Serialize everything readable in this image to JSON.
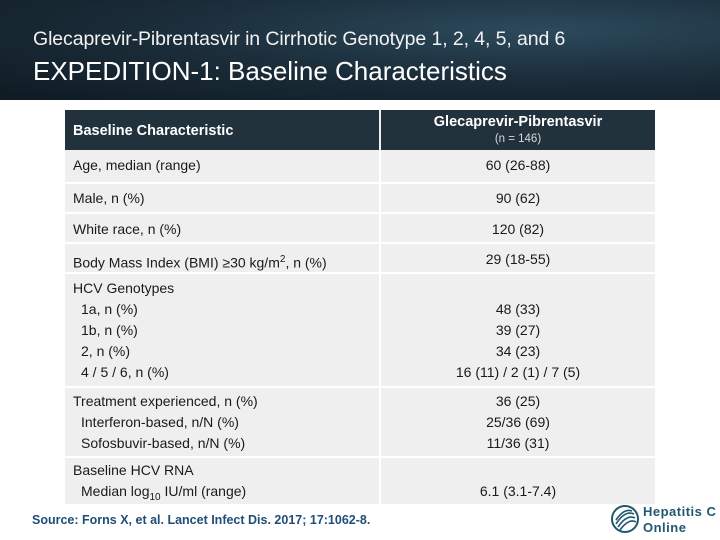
{
  "header": {
    "subtitle": "Glecaprevir-Pibrentasvir in Cirrhotic Genotype 1, 2, 4, 5, and 6",
    "title": "EXPEDITION-1: Baseline Characteristics"
  },
  "table": {
    "col1_header": "Baseline Characteristic",
    "col2_header": "Glecaprevir-Pibrentasvir",
    "col2_subheader": "(n = 146)",
    "rows": [
      {
        "label": "Age, median (range)",
        "value": "60 (26-88)"
      },
      {
        "label": "Male, n (%)",
        "value": "90 (62)"
      },
      {
        "label": "White race, n (%)",
        "value": "120 (82)"
      },
      {
        "label_prefix": "Body Mass Index (BMI) ≥30 kg/m",
        "label_sup": "2",
        "label_suffix": ", n (%)",
        "value": "29 (18-55)"
      },
      {
        "label": "HCV Genotypes",
        "sub_labels": [
          "1a, n (%)",
          "1b, n (%)",
          "2, n (%)",
          "4 / 5 / 6, n (%)"
        ],
        "sub_values": [
          "48 (33)",
          "39 (27)",
          "34 (23)",
          "16 (11) / 2 (1) / 7 (5)"
        ]
      },
      {
        "label": "Treatment experienced, n (%)",
        "value": "36 (25)",
        "sub_labels": [
          "Interferon-based, n/N (%)",
          "Sofosbuvir-based, n/N (%)"
        ],
        "sub_values": [
          "25/36 (69)",
          "11/36 (31)"
        ]
      },
      {
        "label": "Baseline HCV RNA",
        "sub_label_prefix": "Median log",
        "sub_label_sub": "10",
        "sub_label_suffix": " IU/ml (range)",
        "value": "6.1 (3.1-7.4)"
      }
    ]
  },
  "source": "Source: Forns X, et al. Lancet Infect Dis. 2017; 17:1062-8.",
  "logo": {
    "line1": "Hepatitis C",
    "line2": "Online",
    "icon": "hepatitis-c-online-logo-icon",
    "color": "#1f5870"
  },
  "colors": {
    "header_bg": "#1c2f3c",
    "table_header_bg": "#22323c",
    "table_row_bg": "#efefef",
    "source_text": "#1f4e79"
  }
}
